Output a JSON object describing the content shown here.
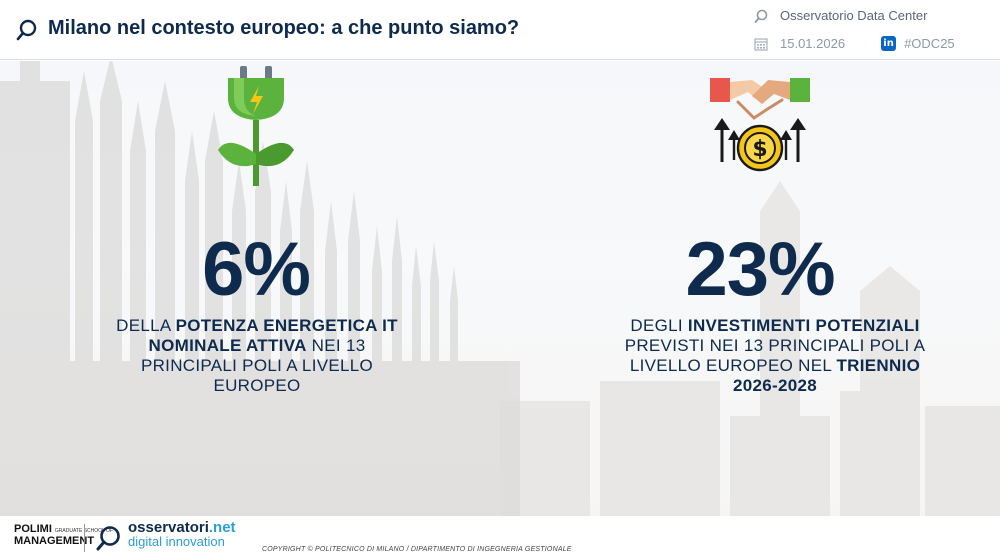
{
  "header": {
    "title": "Milano nel contesto europeo: a che punto siamo?",
    "event": "Osservatorio Data Center",
    "date": "15.01.2026",
    "hashtag": "#ODC25",
    "icons": [
      "search-icon",
      "calendar-icon",
      "linkedin-icon"
    ]
  },
  "stats": [
    {
      "value": "6%",
      "icon": "plug-plant-icon",
      "pre": "DELLA ",
      "bold1": "POTENZA ENERGETICA IT NOMINALE ATTIVA",
      "mid": " NEI 13 PRINCIPALI POLI A LIVELLO EUROPEO",
      "bold2": "",
      "post": ""
    },
    {
      "value": "23%",
      "icon": "handshake-investment-icon",
      "pre": "DEGLI ",
      "bold1": "INVESTIMENTI POTENZIALI",
      "mid": " PREVISTI NEI 13 PRINCIPALI POLI A LIVELLO EUROPEO NEL ",
      "bold2": "TRIENNIO 2026-2028",
      "post": ""
    }
  ],
  "footer": {
    "polimi_line1": "POLIMI",
    "polimi_small": "GRADUATE SCHOOL OF",
    "polimi_line2": "MANAGEMENT",
    "osservatori_main": "osservatori",
    "osservatori_tld": ".net",
    "osservatori_sub": "digital innovation",
    "copyright": "COPYRIGHT © POLITECNICO DI MILANO / DIPARTIMENTO DI INGEGNERIA GESTIONALE"
  },
  "colors": {
    "navy": "#0e2a4d",
    "accent": "#2a9fd6",
    "green": "#5bb33d"
  }
}
